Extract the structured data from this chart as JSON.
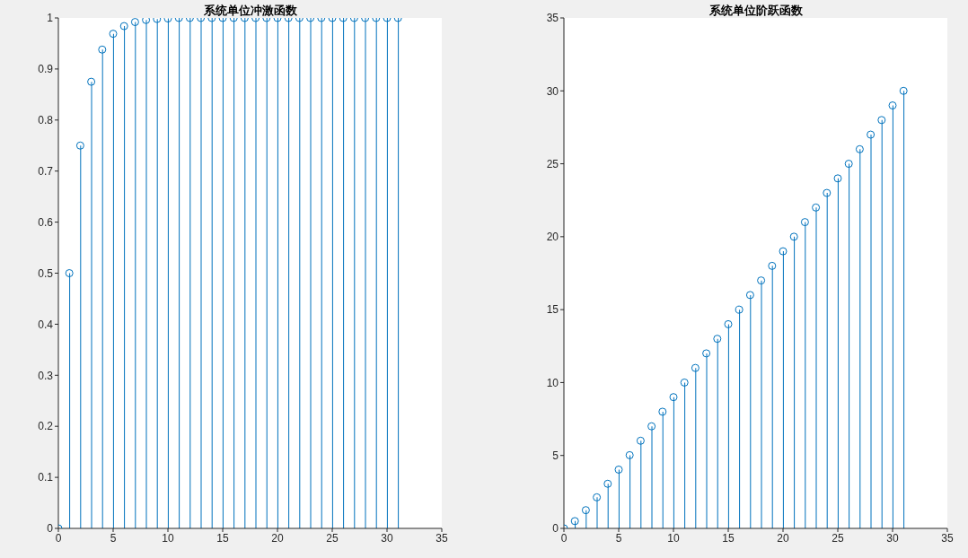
{
  "chart_data": [
    {
      "type": "lollipop",
      "title": "系统单位冲激函数",
      "x": [
        0,
        1,
        2,
        3,
        4,
        5,
        6,
        7,
        8,
        9,
        10,
        11,
        12,
        13,
        14,
        15,
        16,
        17,
        18,
        19,
        20,
        21,
        22,
        23,
        24,
        25,
        26,
        27,
        28,
        29,
        30,
        31
      ],
      "series": [
        {
          "color": "#0072bd",
          "values": [
            0,
            0.5,
            0.75,
            0.875,
            0.938,
            0.969,
            0.984,
            0.992,
            0.996,
            0.998,
            0.999,
            1,
            1,
            1,
            1,
            1,
            1,
            1,
            1,
            1,
            1,
            1,
            1,
            1,
            1,
            1,
            1,
            1,
            1,
            1,
            1,
            1
          ]
        }
      ],
      "xlim": [
        0,
        35
      ],
      "xticks": [
        0,
        5,
        10,
        15,
        20,
        25,
        30,
        35
      ],
      "ylim": [
        0,
        1
      ],
      "yticks": [
        0,
        0.1,
        0.2,
        0.3,
        0.4,
        0.5,
        0.6,
        0.7,
        0.8,
        0.9,
        1
      ],
      "grid": false,
      "legend": false,
      "marker": "circle"
    },
    {
      "type": "lollipop",
      "title": "系统单位阶跃函数",
      "x": [
        0,
        1,
        2,
        3,
        4,
        5,
        6,
        7,
        8,
        9,
        10,
        11,
        12,
        13,
        14,
        15,
        16,
        17,
        18,
        19,
        20,
        21,
        22,
        23,
        24,
        25,
        26,
        27,
        28,
        29,
        30,
        31
      ],
      "series": [
        {
          "color": "#0072bd",
          "values": [
            0,
            0.5,
            1.25,
            2.13,
            3.06,
            4.03,
            5.02,
            6.01,
            7,
            8,
            9,
            10,
            11,
            12,
            13,
            14,
            15,
            16,
            17,
            18,
            19,
            20,
            21,
            22,
            23,
            24,
            25,
            26,
            27,
            28,
            29,
            30
          ]
        }
      ],
      "xlim": [
        0,
        35
      ],
      "xticks": [
        0,
        5,
        10,
        15,
        20,
        25,
        30,
        35
      ],
      "ylim": [
        0,
        35
      ],
      "yticks": [
        0,
        5,
        10,
        15,
        20,
        25,
        30,
        35
      ],
      "grid": false,
      "legend": false,
      "marker": "circle"
    }
  ]
}
